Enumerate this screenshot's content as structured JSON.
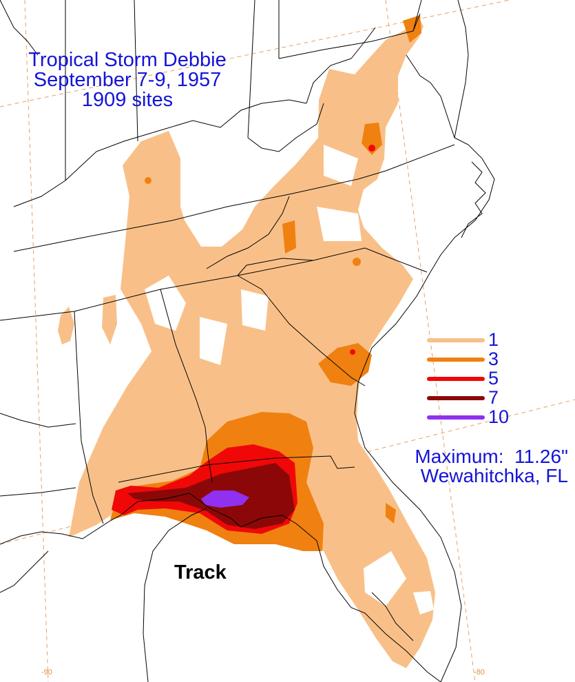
{
  "title": {
    "line1": "Tropical Storm Debbie",
    "line2": "September 7-9, 1957",
    "line3": "1909 sites"
  },
  "legend": {
    "items": [
      {
        "label": "1",
        "color": "#f8c088"
      },
      {
        "label": "3",
        "color": "#f08010"
      },
      {
        "label": "5",
        "color": "#f00808"
      },
      {
        "label": "7",
        "color": "#8c0808"
      },
      {
        "label": "10",
        "color": "#9030f0"
      }
    ]
  },
  "maximum": {
    "line1": "Maximum:  11.26\"",
    "line2": "Wewahitchka, FL"
  },
  "track_label": "Track",
  "longitude_labels": {
    "west": "-90",
    "east": "-80"
  },
  "colors": {
    "text": "#1414d8",
    "background": "#ffffff",
    "borders": "#000000",
    "gridlines": "#e8a060"
  }
}
